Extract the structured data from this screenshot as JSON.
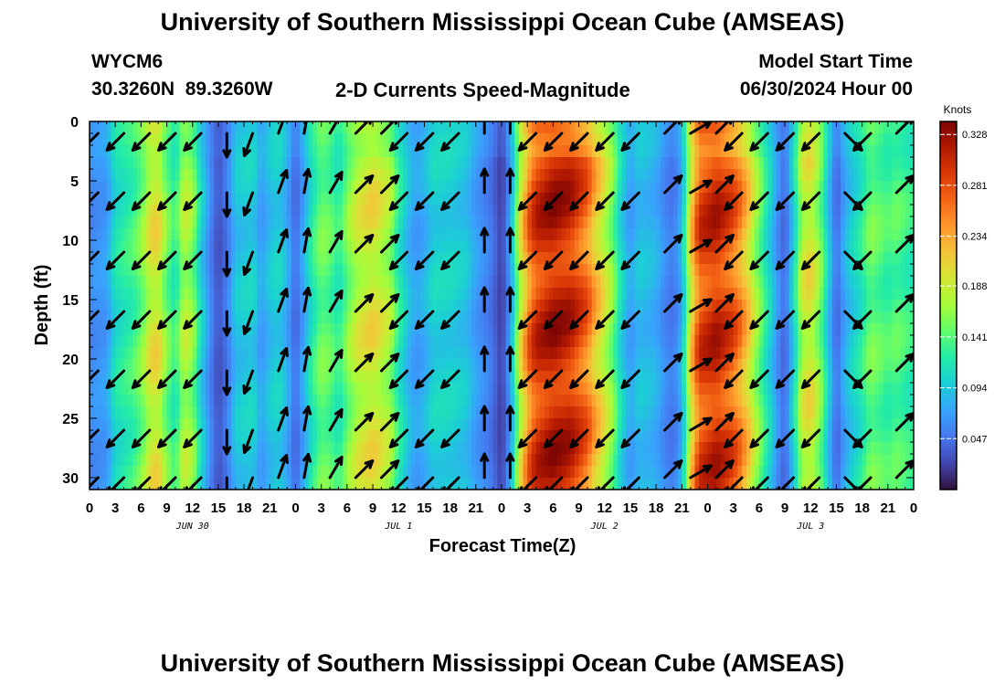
{
  "title": "University of Southern Mississippi Ocean Cube (AMSEAS)",
  "station": {
    "id": "WYCM6",
    "lat": "30.3260N",
    "lon": "89.3260W",
    "coords": "30.3260N  89.3260W"
  },
  "subtitle": "2-D Currents Speed-Magnitude",
  "model_start": {
    "label": "Model Start Time",
    "value": "06/30/2024 Hour 00"
  },
  "footer_title": "University of Southern Mississippi Ocean Cube (AMSEAS)",
  "chart_data": {
    "type": "heatmap",
    "title": "2-D Currents Speed-Magnitude",
    "xlabel": "Forecast Time(Z)",
    "ylabel": "Depth (ft)",
    "x_ticks": [
      "0",
      "3",
      "6",
      "9",
      "12",
      "15",
      "18",
      "21",
      "0",
      "3",
      "6",
      "9",
      "12",
      "15",
      "18",
      "21",
      "0",
      "3",
      "6",
      "9",
      "12",
      "15",
      "18",
      "21",
      "0",
      "3",
      "6",
      "9",
      "12",
      "15",
      "18",
      "21",
      "0"
    ],
    "x_range_hours": [
      0,
      96
    ],
    "date_labels": [
      {
        "hour": 12,
        "text": "JUN 30"
      },
      {
        "hour": 36,
        "text": "JUL 1"
      },
      {
        "hour": 60,
        "text": "JUL 2"
      },
      {
        "hour": 84,
        "text": "JUL 3"
      }
    ],
    "y_ticks": [
      0,
      5,
      10,
      15,
      20,
      25,
      30
    ],
    "y_range_ft": [
      0,
      31
    ],
    "colorbar": {
      "unit": "Knots",
      "min": 0.0,
      "max": 0.34,
      "ticks": [
        "0.328",
        "0.281",
        "0.234",
        "0.188",
        "0.141",
        "0.094",
        "0.047"
      ],
      "tick_values": [
        0.328,
        0.281,
        0.234,
        0.188,
        0.141,
        0.094,
        0.047
      ]
    },
    "speed_by_hour_knots": [
      {
        "hour": 0,
        "speed": 0.06
      },
      {
        "hour": 2,
        "speed": 0.07
      },
      {
        "hour": 3,
        "speed": 0.11
      },
      {
        "hour": 5,
        "speed": 0.13
      },
      {
        "hour": 6,
        "speed": 0.15
      },
      {
        "hour": 7,
        "speed": 0.19
      },
      {
        "hour": 8,
        "speed": 0.2
      },
      {
        "hour": 9,
        "speed": 0.15
      },
      {
        "hour": 10,
        "speed": 0.12
      },
      {
        "hour": 11,
        "speed": 0.18
      },
      {
        "hour": 12,
        "speed": 0.16
      },
      {
        "hour": 13,
        "speed": 0.1
      },
      {
        "hour": 14,
        "speed": 0.06
      },
      {
        "hour": 15,
        "speed": 0.03
      },
      {
        "hour": 16,
        "speed": 0.05
      },
      {
        "hour": 17,
        "speed": 0.09
      },
      {
        "hour": 19,
        "speed": 0.1
      },
      {
        "hour": 20,
        "speed": 0.07
      },
      {
        "hour": 21,
        "speed": 0.09
      },
      {
        "hour": 22,
        "speed": 0.1
      },
      {
        "hour": 23,
        "speed": 0.08
      },
      {
        "hour": 24,
        "speed": 0.04
      },
      {
        "hour": 25,
        "speed": 0.08
      },
      {
        "hour": 26,
        "speed": 0.12
      },
      {
        "hour": 27,
        "speed": 0.15
      },
      {
        "hour": 28,
        "speed": 0.14
      },
      {
        "hour": 29,
        "speed": 0.12
      },
      {
        "hour": 30,
        "speed": 0.15
      },
      {
        "hour": 31,
        "speed": 0.18
      },
      {
        "hour": 33,
        "speed": 0.2
      },
      {
        "hour": 35,
        "speed": 0.17
      },
      {
        "hour": 36,
        "speed": 0.12
      },
      {
        "hour": 37,
        "speed": 0.09
      },
      {
        "hour": 38,
        "speed": 0.07
      },
      {
        "hour": 39,
        "speed": 0.08
      },
      {
        "hour": 40,
        "speed": 0.1
      },
      {
        "hour": 42,
        "speed": 0.1
      },
      {
        "hour": 44,
        "speed": 0.09
      },
      {
        "hour": 45,
        "speed": 0.07
      },
      {
        "hour": 46,
        "speed": 0.06
      },
      {
        "hour": 47,
        "speed": 0.045
      },
      {
        "hour": 48,
        "speed": 0.02
      },
      {
        "hour": 49,
        "speed": 0.07
      },
      {
        "hour": 50,
        "speed": 0.17
      },
      {
        "hour": 51,
        "speed": 0.25
      },
      {
        "hour": 52,
        "speed": 0.29
      },
      {
        "hour": 54,
        "speed": 0.31
      },
      {
        "hour": 56,
        "speed": 0.3
      },
      {
        "hour": 58,
        "speed": 0.26
      },
      {
        "hour": 59,
        "speed": 0.22
      },
      {
        "hour": 60,
        "speed": 0.19
      },
      {
        "hour": 61,
        "speed": 0.15
      },
      {
        "hour": 62,
        "speed": 0.1
      },
      {
        "hour": 63,
        "speed": 0.07
      },
      {
        "hour": 64,
        "speed": 0.09
      },
      {
        "hour": 66,
        "speed": 0.08
      },
      {
        "hour": 67,
        "speed": 0.06
      },
      {
        "hour": 68,
        "speed": 0.05
      },
      {
        "hour": 69,
        "speed": 0.08
      },
      {
        "hour": 70,
        "speed": 0.2
      },
      {
        "hour": 71,
        "speed": 0.28
      },
      {
        "hour": 73,
        "speed": 0.3
      },
      {
        "hour": 75,
        "speed": 0.27
      },
      {
        "hour": 76,
        "speed": 0.24
      },
      {
        "hour": 77,
        "speed": 0.2
      },
      {
        "hour": 78,
        "speed": 0.15
      },
      {
        "hour": 79,
        "speed": 0.11
      },
      {
        "hour": 80,
        "speed": 0.07
      },
      {
        "hour": 81,
        "speed": 0.04
      },
      {
        "hour": 82,
        "speed": 0.1
      },
      {
        "hour": 83,
        "speed": 0.18
      },
      {
        "hour": 84,
        "speed": 0.2
      },
      {
        "hour": 85,
        "speed": 0.16
      },
      {
        "hour": 86,
        "speed": 0.1
      },
      {
        "hour": 87,
        "speed": 0.04
      },
      {
        "hour": 88,
        "speed": 0.08
      },
      {
        "hour": 90,
        "speed": 0.12
      },
      {
        "hour": 91,
        "speed": 0.15
      },
      {
        "hour": 93,
        "speed": 0.13
      },
      {
        "hour": 94,
        "speed": 0.14
      },
      {
        "hour": 95,
        "speed": 0.13
      },
      {
        "hour": 96,
        "speed": 0.12
      }
    ],
    "vector_hours": [
      1,
      4,
      7,
      10,
      13,
      16,
      19,
      22,
      25,
      28,
      31,
      34,
      37,
      40,
      43,
      46,
      49,
      52,
      55,
      58,
      61,
      64,
      67,
      70,
      73,
      76,
      79,
      82,
      85,
      88,
      91,
      94
    ],
    "vector_depths_ft": [
      1,
      6,
      11,
      16,
      21,
      26,
      30
    ],
    "vector_direction_deg_by_hour": [
      225,
      225,
      225,
      225,
      225,
      180,
      200,
      20,
      10,
      30,
      45,
      45,
      225,
      225,
      225,
      0,
      0,
      225,
      225,
      225,
      225,
      225,
      45,
      60,
      45,
      225,
      225,
      225,
      225,
      135,
      225,
      45
    ]
  }
}
